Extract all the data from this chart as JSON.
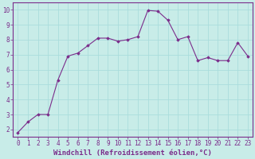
{
  "x": [
    0,
    1,
    2,
    3,
    4,
    5,
    6,
    7,
    8,
    9,
    10,
    11,
    12,
    13,
    14,
    15,
    16,
    17,
    18,
    19,
    20,
    21,
    22,
    23
  ],
  "y": [
    1.8,
    2.5,
    3.0,
    3.0,
    5.3,
    6.9,
    7.1,
    7.6,
    8.1,
    8.1,
    7.9,
    8.0,
    8.2,
    9.95,
    9.9,
    9.3,
    8.0,
    8.2,
    6.6,
    6.8,
    6.6,
    6.6,
    7.8,
    6.9
  ],
  "line_color": "#7b2d8b",
  "marker": "D",
  "marker_size": 1.8,
  "bg_color": "#c8ece8",
  "grid_color": "#aadddd",
  "xlabel": "Windchill (Refroidissement éolien,°C)",
  "ylabel": "",
  "xlim": [
    -0.5,
    23.5
  ],
  "ylim": [
    1.5,
    10.5
  ],
  "yticks": [
    2,
    3,
    4,
    5,
    6,
    7,
    8,
    9,
    10
  ],
  "xticks": [
    0,
    1,
    2,
    3,
    4,
    5,
    6,
    7,
    8,
    9,
    10,
    11,
    12,
    13,
    14,
    15,
    16,
    17,
    18,
    19,
    20,
    21,
    22,
    23
  ],
  "xlabel_color": "#7b2d8b",
  "tick_color": "#7b2d8b",
  "axis_label_fontsize": 6.5,
  "tick_fontsize": 5.5,
  "spine_color": "#7b2d8b"
}
